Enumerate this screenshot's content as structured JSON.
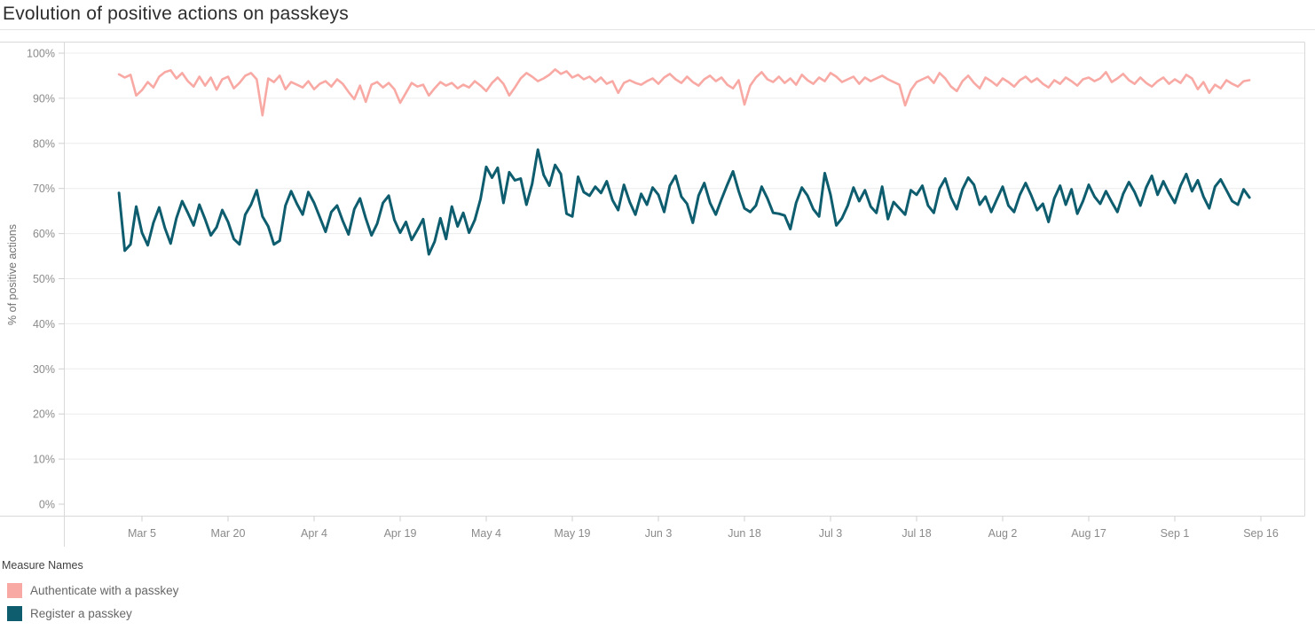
{
  "page": {
    "title": "Evolution of positive actions on passkeys"
  },
  "chart_data": {
    "type": "line",
    "title": "Evolution of positive actions on passkeys",
    "xlabel": "",
    "ylabel": "% of positive actions",
    "ylim": [
      0,
      100
    ],
    "y_tick_labels": [
      "0%",
      "10%",
      "20%",
      "30%",
      "40%",
      "50%",
      "60%",
      "70%",
      "80%",
      "90%",
      "100%"
    ],
    "x_tick_labels": [
      "Mar 5",
      "Mar 20",
      "Apr 4",
      "Apr 19",
      "May 4",
      "May 19",
      "Jun 3",
      "Jun 18",
      "Jul 3",
      "Jul 18",
      "Aug 2",
      "Aug 17",
      "Sep 1",
      "Sep 16"
    ],
    "x_start_date": "Mar 1",
    "x_end_date": "Sep 14",
    "x_tick_interval_days": 15,
    "grid": "horizontal",
    "legend_position": "bottom-left",
    "legend_title": "Measure Names",
    "series": [
      {
        "name": "Authenticate with a passkey",
        "color": "#F8A9A4",
        "line_width": 2.6,
        "values": [
          95.3,
          94.6,
          95.2,
          90.6,
          91.8,
          93.6,
          92.4,
          94.8,
          95.8,
          96.2,
          94.4,
          95.6,
          93.8,
          92.6,
          94.8,
          92.8,
          94.6,
          91.9,
          94.2,
          94.8,
          92.2,
          93.4,
          95.0,
          95.6,
          94.2,
          86.2,
          94.4,
          93.6,
          95.0,
          92.0,
          93.6,
          93.0,
          92.4,
          93.8,
          92.0,
          93.2,
          93.8,
          92.6,
          94.2,
          93.2,
          91.4,
          89.8,
          92.8,
          89.2,
          93.0,
          93.6,
          92.4,
          93.4,
          92.0,
          89.0,
          91.2,
          93.4,
          92.6,
          93.0,
          90.6,
          92.2,
          93.6,
          92.8,
          93.4,
          92.2,
          93.0,
          92.4,
          93.8,
          92.8,
          91.6,
          93.4,
          94.6,
          93.2,
          90.6,
          92.4,
          94.4,
          95.6,
          94.8,
          93.8,
          94.4,
          95.2,
          96.4,
          95.4,
          96.0,
          94.6,
          95.2,
          94.2,
          94.8,
          93.6,
          94.6,
          93.2,
          93.8,
          91.2,
          93.4,
          94.0,
          93.4,
          93.0,
          93.8,
          94.4,
          93.2,
          94.6,
          95.4,
          94.2,
          93.4,
          94.8,
          93.6,
          92.8,
          94.2,
          95.0,
          93.8,
          94.6,
          93.0,
          92.2,
          94.0,
          88.6,
          92.8,
          94.6,
          95.8,
          94.2,
          93.6,
          94.8,
          93.4,
          94.4,
          93.0,
          95.2,
          94.0,
          93.2,
          94.6,
          93.8,
          95.6,
          94.8,
          93.6,
          94.2,
          94.8,
          93.2,
          94.6,
          93.8,
          94.4,
          95.0,
          94.2,
          93.6,
          93.0,
          88.4,
          91.8,
          93.6,
          94.2,
          94.8,
          93.4,
          95.6,
          94.4,
          92.6,
          91.6,
          93.8,
          95.0,
          93.4,
          92.2,
          94.6,
          93.8,
          92.8,
          94.4,
          93.6,
          92.6,
          94.0,
          94.8,
          93.6,
          94.4,
          93.2,
          92.4,
          94.0,
          93.2,
          94.6,
          93.8,
          92.8,
          94.2,
          94.6,
          93.8,
          94.4,
          95.8,
          93.6,
          94.4,
          95.4,
          94.0,
          93.2,
          94.6,
          93.4,
          92.6,
          93.8,
          94.6,
          93.2,
          94.2,
          93.4,
          95.2,
          94.4,
          92.0,
          93.6,
          91.2,
          93.0,
          92.2,
          94.0,
          93.2,
          92.6,
          93.8,
          94.0
        ]
      },
      {
        "name": "Register a passkey",
        "color": "#0E5D6E",
        "line_width": 3.0,
        "values": [
          69.0,
          56.2,
          57.6,
          66.0,
          60.2,
          57.4,
          62.4,
          65.8,
          61.2,
          57.8,
          63.4,
          67.2,
          64.6,
          61.8,
          66.4,
          63.2,
          59.6,
          61.4,
          65.2,
          62.6,
          58.8,
          57.6,
          64.2,
          66.4,
          69.6,
          63.8,
          61.6,
          57.6,
          58.4,
          66.2,
          69.4,
          66.6,
          64.2,
          69.2,
          66.8,
          63.6,
          60.4,
          64.8,
          66.2,
          62.8,
          59.8,
          65.4,
          67.8,
          63.4,
          59.6,
          62.2,
          66.8,
          68.4,
          63.0,
          60.2,
          62.6,
          58.6,
          60.8,
          63.2,
          55.4,
          58.2,
          63.4,
          58.8,
          66.0,
          61.6,
          64.6,
          60.2,
          63.0,
          67.6,
          74.8,
          72.4,
          74.6,
          66.8,
          73.6,
          71.8,
          72.2,
          66.4,
          71.0,
          78.6,
          73.0,
          70.6,
          75.2,
          73.2,
          64.4,
          63.8,
          72.6,
          69.2,
          68.4,
          70.4,
          69.0,
          71.6,
          67.4,
          65.2,
          70.8,
          67.0,
          64.2,
          68.8,
          66.4,
          70.2,
          68.6,
          64.8,
          70.6,
          72.8,
          68.2,
          66.6,
          62.4,
          68.4,
          71.2,
          66.8,
          64.2,
          67.6,
          70.8,
          73.8,
          69.4,
          65.6,
          64.8,
          66.2,
          70.4,
          67.8,
          64.6,
          64.4,
          64.0,
          61.0,
          66.8,
          70.2,
          68.4,
          65.4,
          63.8,
          73.4,
          68.6,
          61.8,
          63.4,
          66.2,
          70.2,
          67.2,
          69.6,
          66.0,
          64.6,
          70.4,
          63.2,
          67.0,
          65.6,
          64.2,
          69.6,
          68.6,
          70.6,
          66.2,
          64.6,
          70.0,
          72.2,
          68.0,
          65.4,
          69.8,
          72.4,
          70.8,
          66.4,
          68.2,
          64.8,
          67.6,
          70.4,
          66.2,
          64.8,
          68.6,
          71.2,
          68.4,
          65.2,
          66.6,
          62.6,
          67.8,
          70.6,
          66.4,
          69.8,
          64.4,
          67.2,
          70.8,
          68.2,
          66.6,
          69.4,
          67.0,
          64.8,
          68.8,
          71.4,
          69.2,
          66.2,
          70.2,
          72.8,
          68.6,
          71.6,
          69.0,
          66.8,
          70.6,
          73.2,
          69.4,
          71.8,
          68.2,
          65.6,
          70.4,
          72.0,
          69.6,
          67.2,
          66.4,
          69.8,
          68.0
        ]
      }
    ]
  },
  "style": {
    "grid_color": "#ececec",
    "border_color": "#d9d9d9",
    "tick_color": "#cfcfcf",
    "tick_label_color": "#8a8a8a",
    "axis_title_color": "#717171"
  }
}
